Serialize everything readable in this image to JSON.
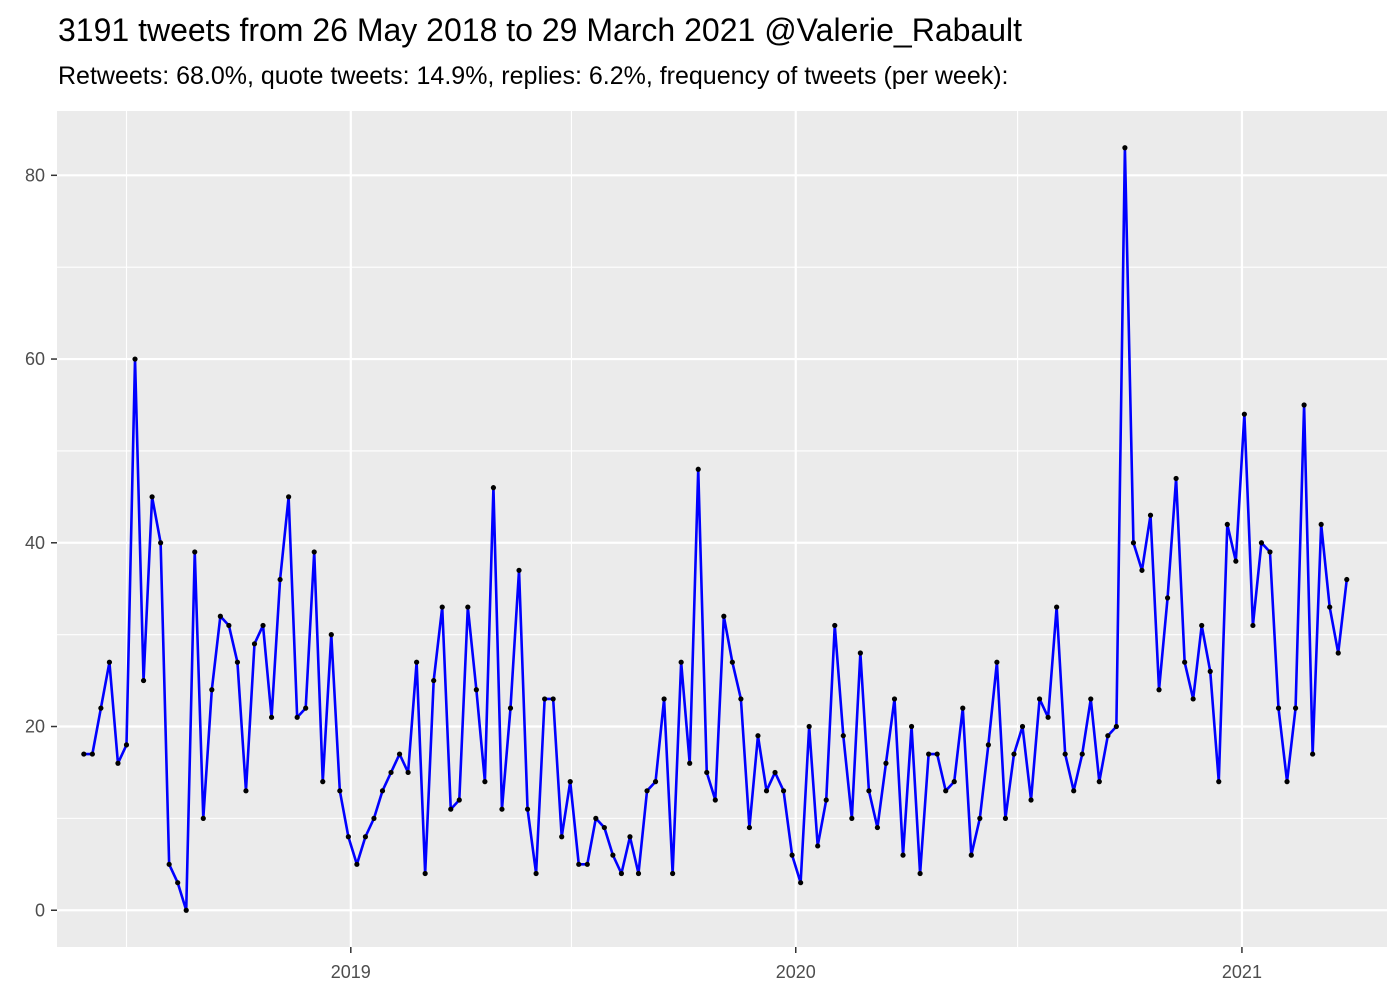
{
  "chart_data": {
    "type": "line",
    "title": "3191 tweets from 26 May 2018 to 29 March 2021 @Valerie_Rabault",
    "subtitle": "Retweets: 68.0%, quote tweets: 14.9%, replies: 6.2%, frequency of tweets (per week):",
    "xlabel": "",
    "ylabel": "",
    "x_ticks": [
      "2019",
      "2020",
      "2021"
    ],
    "y_ticks": [
      0,
      20,
      40,
      60,
      80
    ],
    "ylim": [
      -4,
      87
    ],
    "xlim": [
      "2018-05-05",
      "2021-04-30"
    ],
    "grid": true,
    "line_color": "#0000ff",
    "point_color": "#000000",
    "background": "#ebebeb",
    "series": [
      {
        "x": [
          "2018-05-27",
          "2018-06-03",
          "2018-06-10",
          "2018-06-17",
          "2018-06-24",
          "2018-07-01",
          "2018-07-08",
          "2018-07-15",
          "2018-07-22",
          "2018-07-29",
          "2018-08-05",
          "2018-08-12",
          "2018-08-19",
          "2018-08-26",
          "2018-09-02",
          "2018-09-09",
          "2018-09-16",
          "2018-09-23",
          "2018-09-30",
          "2018-10-07",
          "2018-10-14",
          "2018-10-21",
          "2018-10-28",
          "2018-11-04",
          "2018-11-11",
          "2018-11-18",
          "2018-11-25",
          "2018-12-02",
          "2018-12-09",
          "2018-12-16",
          "2018-12-23",
          "2018-12-30",
          "2019-01-06",
          "2019-01-13",
          "2019-01-20",
          "2019-01-27",
          "2019-02-03",
          "2019-02-10",
          "2019-02-17",
          "2019-02-24",
          "2019-03-03",
          "2019-03-10",
          "2019-03-17",
          "2019-03-24",
          "2019-03-31",
          "2019-04-07",
          "2019-04-14",
          "2019-04-21",
          "2019-04-28",
          "2019-05-05",
          "2019-05-12",
          "2019-05-19",
          "2019-05-26",
          "2019-06-02",
          "2019-06-09",
          "2019-06-16",
          "2019-06-23",
          "2019-06-30",
          "2019-07-07",
          "2019-07-14",
          "2019-07-21",
          "2019-07-28",
          "2019-08-04",
          "2019-08-11",
          "2019-08-18",
          "2019-08-25",
          "2019-09-01",
          "2019-09-08",
          "2019-09-15",
          "2019-09-22",
          "2019-09-29",
          "2019-10-06",
          "2019-10-13",
          "2019-10-20",
          "2019-10-27",
          "2019-11-03",
          "2019-11-10",
          "2019-11-17",
          "2019-11-24",
          "2019-12-01",
          "2019-12-08",
          "2019-12-15",
          "2019-12-22",
          "2019-12-29",
          "2020-01-05",
          "2020-01-12",
          "2020-01-19",
          "2020-01-26",
          "2020-02-02",
          "2020-02-09",
          "2020-02-16",
          "2020-02-23",
          "2020-03-01",
          "2020-03-08",
          "2020-03-15",
          "2020-03-22",
          "2020-03-29",
          "2020-04-05",
          "2020-04-12",
          "2020-04-19",
          "2020-04-26",
          "2020-05-03",
          "2020-05-10",
          "2020-05-17",
          "2020-05-24",
          "2020-05-31",
          "2020-06-07",
          "2020-06-14",
          "2020-06-21",
          "2020-06-28",
          "2020-07-05",
          "2020-07-12",
          "2020-07-19",
          "2020-07-26",
          "2020-08-02",
          "2020-08-09",
          "2020-08-16",
          "2020-08-23",
          "2020-08-30",
          "2020-09-06",
          "2020-09-13",
          "2020-09-20",
          "2020-09-27",
          "2020-10-04",
          "2020-10-11",
          "2020-10-18",
          "2020-10-25",
          "2020-11-01",
          "2020-11-08",
          "2020-11-15",
          "2020-11-22",
          "2020-11-29",
          "2020-12-06",
          "2020-12-13",
          "2020-12-20",
          "2020-12-27",
          "2021-01-03",
          "2021-01-10",
          "2021-01-17",
          "2021-01-24",
          "2021-01-31",
          "2021-02-07",
          "2021-02-14",
          "2021-02-21",
          "2021-02-28",
          "2021-03-07",
          "2021-03-14",
          "2021-03-21",
          "2021-03-28"
        ],
        "y": [
          17,
          17,
          22,
          27,
          16,
          18,
          60,
          25,
          45,
          40,
          5,
          3,
          0,
          39,
          10,
          24,
          32,
          31,
          27,
          13,
          29,
          31,
          21,
          36,
          45,
          21,
          22,
          39,
          14,
          30,
          13,
          8,
          5,
          8,
          10,
          13,
          15,
          17,
          15,
          27,
          4,
          25,
          33,
          11,
          12,
          33,
          24,
          14,
          46,
          11,
          22,
          37,
          11,
          4,
          23,
          23,
          8,
          14,
          5,
          5,
          10,
          9,
          6,
          4,
          8,
          4,
          13,
          14,
          23,
          4,
          27,
          16,
          48,
          15,
          12,
          32,
          27,
          23,
          9,
          19,
          13,
          15,
          13,
          6,
          3,
          20,
          7,
          12,
          31,
          19,
          10,
          28,
          13,
          9,
          16,
          23,
          6,
          20,
          4,
          17,
          17,
          13,
          14,
          22,
          6,
          10,
          18,
          27,
          10,
          17,
          20,
          12,
          23,
          21,
          33,
          17,
          13,
          17,
          23,
          14,
          19,
          20,
          83,
          40,
          37,
          43,
          24,
          34,
          47,
          27,
          23,
          31,
          26,
          14,
          42,
          38,
          54,
          31,
          40,
          39,
          22,
          14,
          22,
          55,
          17,
          42,
          33,
          28,
          36
        ]
      }
    ]
  }
}
